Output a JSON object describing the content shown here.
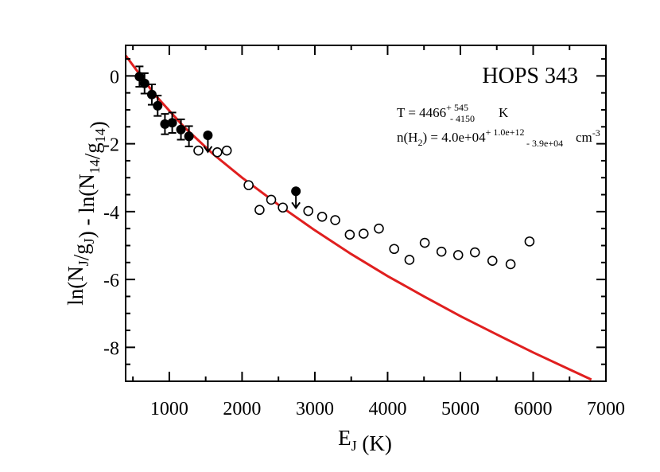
{
  "chart_data": {
    "type": "scatter",
    "title": "HOPS 343",
    "xlabel": "E_J (K)",
    "ylabel": "ln(N_J/g_J) - ln(N_14/g_14)",
    "xlim": [
      400,
      7000
    ],
    "ylim": [
      -9,
      0.9
    ],
    "xticks": [
      1000,
      2000,
      3000,
      4000,
      5000,
      6000,
      7000
    ],
    "yticks": [
      0,
      -2,
      -4,
      -6,
      -8
    ],
    "xtick_labels": [
      "1000",
      "2000",
      "3000",
      "4000",
      "5000",
      "6000",
      "7000"
    ],
    "ytick_labels": [
      "0",
      "-2",
      "-4",
      "-6",
      "-8"
    ],
    "grid": false,
    "annotations": {
      "temperature": {
        "prefix": "T = 4466",
        "sup": "+ 545",
        "sub": "- 4150",
        "unit": "K"
      },
      "density": {
        "prefix": "n(H",
        "sub2": "2",
        "mid": ") =  4.0e+04",
        "sup": "+ 1.0e+12",
        "sub": "- 3.9e+04",
        "unit": "cm",
        "unit_exp": "-3"
      }
    },
    "series": [
      {
        "marker": "filled-circle",
        "color": "#000000",
        "points": [
          {
            "x": 590,
            "y": -0.02,
            "err": 0.3
          },
          {
            "x": 660,
            "y": -0.22,
            "err": 0.3
          },
          {
            "x": 760,
            "y": -0.55,
            "err": 0.3
          },
          {
            "x": 840,
            "y": -0.88,
            "err": 0.3
          },
          {
            "x": 940,
            "y": -1.42,
            "err": 0.3
          },
          {
            "x": 1040,
            "y": -1.38,
            "err": 0.3
          },
          {
            "x": 1160,
            "y": -1.58,
            "err": 0.3
          },
          {
            "x": 1270,
            "y": -1.78,
            "err": 0.3
          }
        ]
      },
      {
        "marker": "filled-circle-upper-limit",
        "color": "#000000",
        "points": [
          {
            "x": 1530,
            "y": -1.75
          },
          {
            "x": 2740,
            "y": -3.4
          }
        ]
      },
      {
        "marker": "open-circle",
        "color": "#000000",
        "points": [
          {
            "x": 1400,
            "y": -2.2
          },
          {
            "x": 1660,
            "y": -2.25
          },
          {
            "x": 1790,
            "y": -2.2
          },
          {
            "x": 2090,
            "y": -3.22
          },
          {
            "x": 2240,
            "y": -3.95
          },
          {
            "x": 2400,
            "y": -3.65
          },
          {
            "x": 2560,
            "y": -3.88
          },
          {
            "x": 2910,
            "y": -3.98
          },
          {
            "x": 3100,
            "y": -4.15
          },
          {
            "x": 3280,
            "y": -4.25
          },
          {
            "x": 3480,
            "y": -4.68
          },
          {
            "x": 3670,
            "y": -4.65
          },
          {
            "x": 3880,
            "y": -4.5
          },
          {
            "x": 4090,
            "y": -5.1
          },
          {
            "x": 4300,
            "y": -5.42
          },
          {
            "x": 4510,
            "y": -4.92
          },
          {
            "x": 4740,
            "y": -5.18
          },
          {
            "x": 4970,
            "y": -5.28
          },
          {
            "x": 5200,
            "y": -5.2
          },
          {
            "x": 5440,
            "y": -5.45
          },
          {
            "x": 5690,
            "y": -5.55
          },
          {
            "x": 5950,
            "y": -4.88
          }
        ]
      },
      {
        "marker": "line",
        "color": "#e01f1f",
        "points": [
          {
            "x": 400,
            "y": 0.6
          },
          {
            "x": 800,
            "y": -0.55
          },
          {
            "x": 1200,
            "y": -1.5
          },
          {
            "x": 1600,
            "y": -2.3
          },
          {
            "x": 2000,
            "y": -3.0
          },
          {
            "x": 2500,
            "y": -3.8
          },
          {
            "x": 3000,
            "y": -4.55
          },
          {
            "x": 3500,
            "y": -5.25
          },
          {
            "x": 4000,
            "y": -5.9
          },
          {
            "x": 4500,
            "y": -6.5
          },
          {
            "x": 5000,
            "y": -7.08
          },
          {
            "x": 5500,
            "y": -7.62
          },
          {
            "x": 6000,
            "y": -8.15
          },
          {
            "x": 6500,
            "y": -8.65
          },
          {
            "x": 6800,
            "y": -8.95
          }
        ]
      }
    ]
  }
}
